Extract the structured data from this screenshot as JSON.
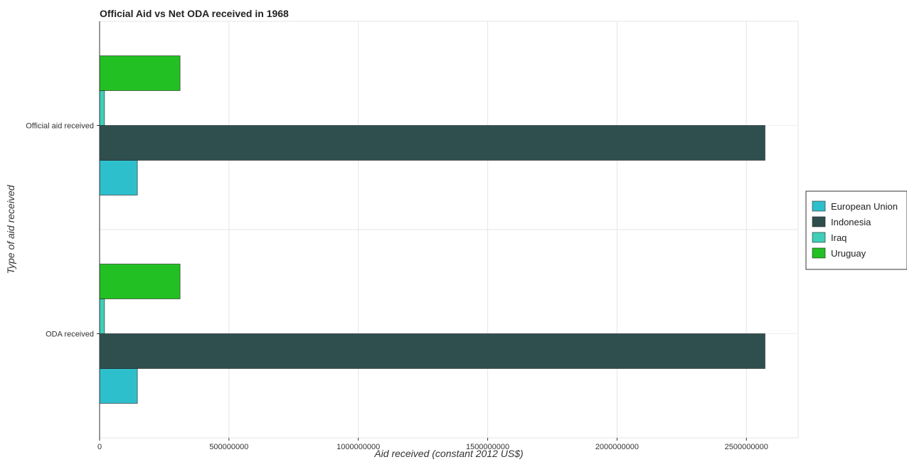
{
  "chart_data": {
    "type": "bar",
    "orientation": "horizontal",
    "title": "Official Aid vs Net ODA received in 1968",
    "xlabel": "Aid received (constant 2012 US$)",
    "ylabel": "Type of aid received",
    "categories": [
      "Official aid received",
      "ODA received"
    ],
    "xlim": [
      0,
      2700000000
    ],
    "xticks": [
      0,
      500000000,
      1000000000,
      1500000000,
      2000000000,
      2500000000
    ],
    "xtick_labels": [
      "0",
      "500000000",
      "1000000000",
      "1500000000",
      "2000000000",
      "2500000000"
    ],
    "grid": true,
    "legend_position": "right",
    "series": [
      {
        "name": "European Union",
        "color": "#2EBFCC",
        "values": [
          146000000,
          146000000
        ]
      },
      {
        "name": "Indonesia",
        "color": "#2F4F4F",
        "values": [
          2572000000,
          2572000000
        ]
      },
      {
        "name": "Iraq",
        "color": "#3FCFB8",
        "values": [
          19000000,
          19000000
        ]
      },
      {
        "name": "Uruguay",
        "color": "#22C022",
        "values": [
          311000000,
          311000000
        ]
      }
    ]
  }
}
